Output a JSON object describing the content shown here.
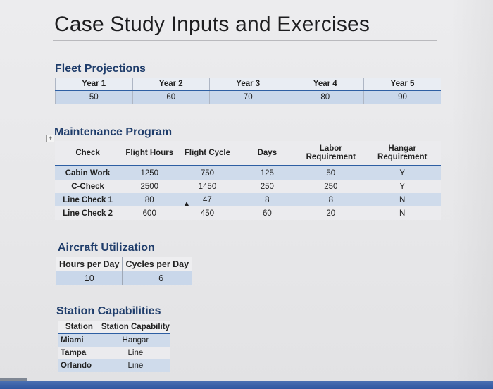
{
  "title": "Case Study Inputs and Exercises",
  "fleet": {
    "title": "Fleet Projections",
    "headers": [
      "Year 1",
      "Year 2",
      "Year 3",
      "Year 4",
      "Year 5"
    ],
    "values": [
      "50",
      "60",
      "70",
      "80",
      "90"
    ]
  },
  "maintenance": {
    "title": "Maintenance Program",
    "headers": [
      "Check",
      "Flight Hours",
      "Flight Cycle",
      "Days",
      "Labor Requirement",
      "Hangar Requirement"
    ],
    "rows": [
      [
        "Cabin Work",
        "1250",
        "750",
        "125",
        "50",
        "Y"
      ],
      [
        "C-Check",
        "2500",
        "1450",
        "250",
        "250",
        "Y"
      ],
      [
        "Line Check 1",
        "80",
        "47",
        "8",
        "8",
        "N"
      ],
      [
        "Line Check 2",
        "600",
        "450",
        "60",
        "20",
        "N"
      ]
    ]
  },
  "utilization": {
    "title": "Aircraft Utilization",
    "headers": [
      "Hours per Day",
      "Cycles per Day"
    ],
    "values": [
      "10",
      "6"
    ]
  },
  "station": {
    "title": "Station Capabilities",
    "headers": [
      "Station",
      "Station Capability"
    ],
    "rows": [
      [
        "Miami",
        "Hangar"
      ],
      [
        "Tampa",
        "Line"
      ],
      [
        "Orlando",
        "Line"
      ]
    ]
  },
  "colors": {
    "accent": "#2e5fa3",
    "band": "#cfdbeb",
    "heading": "#1f3d6b"
  }
}
